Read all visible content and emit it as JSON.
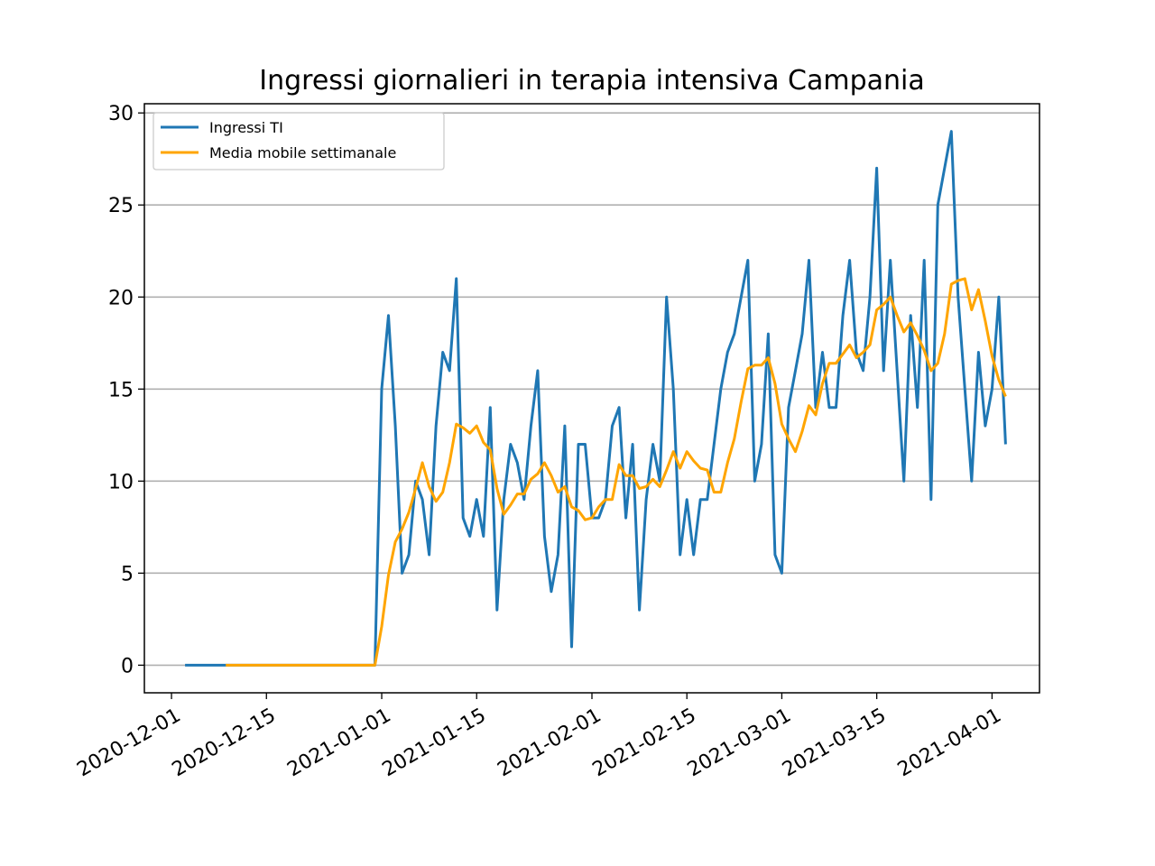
{
  "chart_data": {
    "type": "line",
    "title": "Ingressi giornalieri in terapia intensiva Campania",
    "xlabel": "",
    "ylabel": "",
    "ylim": [
      -1.5,
      30.5
    ],
    "xlim": [
      "2020-11-27",
      "2021-04-08"
    ],
    "grid": "y",
    "legend_position": "top-left",
    "x_ticks": [
      "2020-12-01",
      "2020-12-15",
      "2021-01-01",
      "2021-01-15",
      "2021-02-01",
      "2021-02-15",
      "2021-03-01",
      "2021-03-15",
      "2021-04-01"
    ],
    "y_ticks": [
      "0",
      "5",
      "10",
      "15",
      "20",
      "25",
      "30"
    ],
    "series": [
      {
        "name": "Ingressi TI",
        "color": "#1f77b4",
        "start_date": "2020-12-03",
        "values": [
          0,
          0,
          0,
          0,
          0,
          0,
          0,
          0,
          0,
          0,
          0,
          0,
          0,
          0,
          0,
          0,
          0,
          0,
          0,
          0,
          0,
          0,
          0,
          0,
          0,
          0,
          0,
          0,
          0,
          15,
          19,
          13,
          5,
          6,
          10,
          9,
          6,
          13,
          17,
          16,
          21,
          8,
          7,
          9,
          7,
          14,
          3,
          9,
          12,
          11,
          9,
          13,
          16,
          7,
          4,
          6,
          13,
          1,
          12,
          12,
          8,
          8,
          9,
          13,
          14,
          8,
          12,
          3,
          9,
          12,
          10,
          20,
          15,
          6,
          9,
          6,
          9,
          9,
          12,
          15,
          17,
          18,
          20,
          22,
          10,
          12,
          18,
          6,
          5,
          14,
          16,
          18,
          22,
          14,
          17,
          14,
          14,
          19,
          22,
          17,
          16,
          20,
          27,
          16,
          22,
          16,
          10,
          19,
          14,
          22,
          9,
          25,
          27,
          29,
          20,
          15,
          10,
          17,
          13,
          15,
          20,
          12
        ]
      },
      {
        "name": "Media mobile settimanale",
        "color": "#ffa500",
        "start_date": "2020-12-09",
        "values": [
          0,
          0,
          0,
          0,
          0,
          0,
          0,
          0,
          0,
          0,
          0,
          0,
          0,
          0,
          0,
          0,
          0,
          0,
          0,
          0,
          0,
          0,
          0,
          2.1,
          4.9,
          6.7,
          7.4,
          8.3,
          9.6,
          11,
          9.7,
          8.9,
          9.4,
          11,
          13.1,
          12.9,
          12.6,
          13,
          12.1,
          11.7,
          9.6,
          8.2,
          8.7,
          9.3,
          9.3,
          10.1,
          10.4,
          11,
          10.3,
          9.4,
          9.7,
          8.6,
          8.4,
          7.9,
          8,
          8.6,
          9,
          9,
          10.9,
          10.3,
          10.3,
          9.6,
          9.7,
          10.1,
          9.7,
          10.6,
          11.6,
          10.7,
          11.6,
          11.1,
          10.7,
          10.6,
          9.4,
          9.4,
          11,
          12.3,
          14.3,
          16.1,
          16.3,
          16.3,
          16.7,
          15.3,
          13.1,
          12.3,
          11.6,
          12.7,
          14.1,
          13.6,
          15.3,
          16.4,
          16.4,
          16.9,
          17.4,
          16.7,
          17,
          17.4,
          19.3,
          19.6,
          20,
          19,
          18.1,
          18.6,
          17.9,
          17.1,
          16,
          16.4,
          18,
          20.7,
          20.9,
          21,
          19.3,
          20.4,
          18.7,
          16.8,
          15.5,
          14.6
        ]
      }
    ]
  }
}
